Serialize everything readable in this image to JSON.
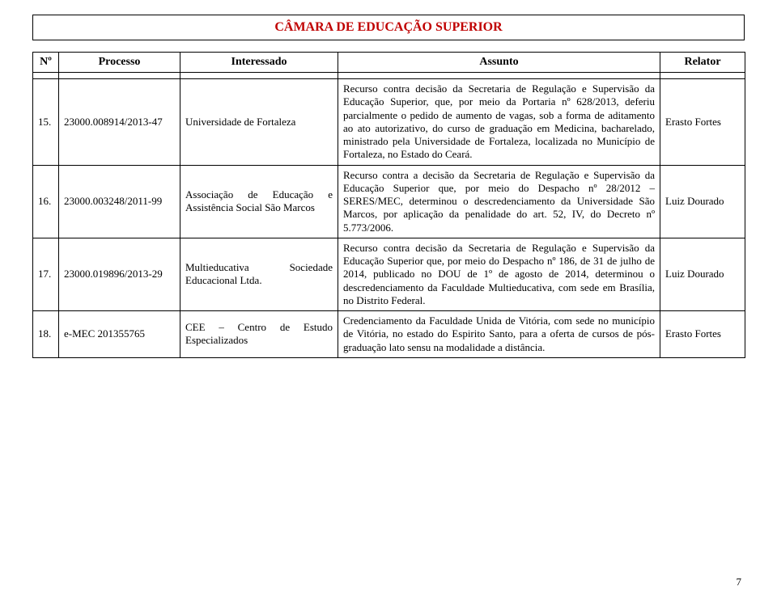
{
  "banner": {
    "title": "CÂMARA DE EDUCAÇÃO SUPERIOR",
    "color": "#c00000"
  },
  "head": {
    "n": "Nº",
    "processo": "Processo",
    "interessado": "Interessado",
    "assunto": "Assunto",
    "relator": "Relator"
  },
  "rows": [
    {
      "n": "15.",
      "processo": "23000.008914/2013-47",
      "interessado": "Universidade de Fortaleza",
      "assunto": "Recurso contra decisão da Secretaria de Regulação e Supervisão da Educação Superior, que, por meio da Portaria nº 628/2013, deferiu parcialmente o pedido de aumento de vagas, sob a forma de aditamento ao ato autorizativo, do curso de graduação em Medicina, bacharelado, ministrado pela Universidade de Fortaleza, localizada no Município de Fortaleza, no Estado do Ceará.",
      "relator": "Erasto Fortes"
    },
    {
      "n": "16.",
      "processo": "23000.003248/2011-99",
      "interessado": "Associação de Educação e Assistência Social São Marcos",
      "assunto": "Recurso contra a decisão da Secretaria de Regulação e Supervisão da Educação Superior que, por meio do Despacho nº 28/2012 – SERES/MEC, determinou o descredenciamento da Universidade São Marcos, por aplicação da penalidade do art. 52, IV, do Decreto nº 5.773/2006.",
      "relator": "Luiz Dourado"
    },
    {
      "n": "17.",
      "processo": "23000.019896/2013-29",
      "interessado": "Multieducativa Sociedade Educacional Ltda.",
      "assunto": "Recurso contra decisão da Secretaria de Regulação e Supervisão da Educação Superior que, por meio do Despacho nº 186, de 31 de julho de 2014, publicado no DOU de 1º de agosto de 2014, determinou o descredenciamento da Faculdade Multieducativa, com sede em Brasília, no Distrito Federal.",
      "relator": "Luiz Dourado"
    },
    {
      "n": "18.",
      "processo": "e-MEC 201355765",
      "interessado": "CEE – Centro de Estudo Especializados",
      "assunto": "Credenciamento da Faculdade Unida de Vitória, com sede no município de Vitória, no estado do Espirito Santo, para a oferta de cursos de pós-graduação lato sensu na modalidade a distância.",
      "relator": "Erasto Fortes"
    }
  ],
  "page": "7"
}
